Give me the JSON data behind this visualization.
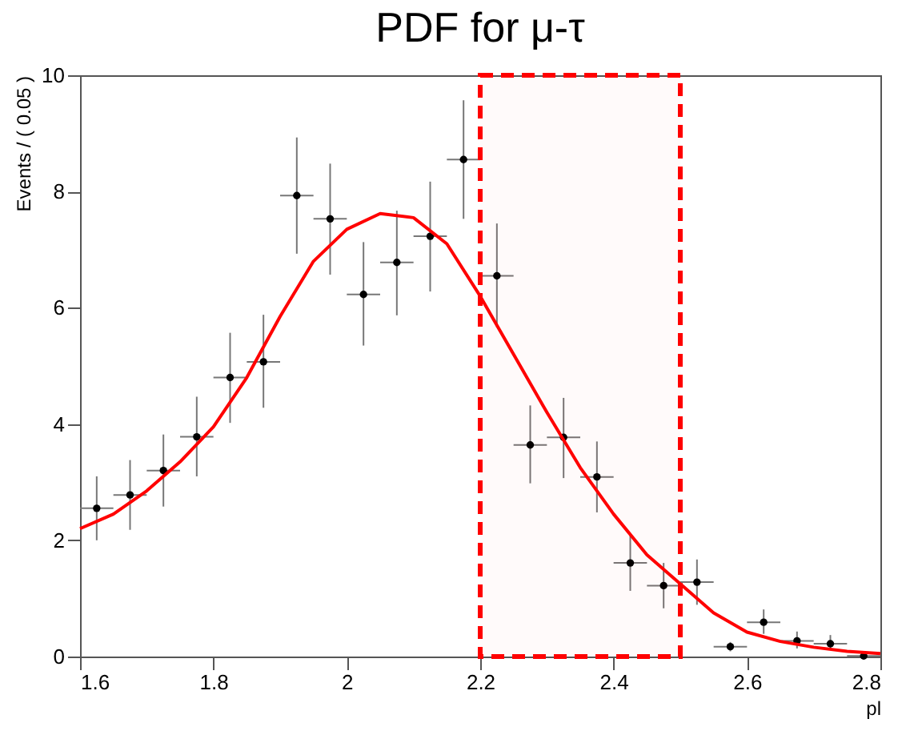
{
  "chart_data": {
    "type": "scatter",
    "title": "PDF for μ-τ",
    "xlabel": "pl",
    "ylabel": "Events / ( 0.05 )",
    "xlim": [
      1.6,
      2.8
    ],
    "xticks": [
      1.6,
      1.8,
      2,
      2.2,
      2.4,
      2.6,
      2.8
    ],
    "ylim": [
      0,
      10
    ],
    "yticks": [
      0,
      2,
      4,
      6,
      8,
      10
    ],
    "grid": false,
    "series": [
      {
        "color": "#000000",
        "marker": "circle",
        "x": [
          1.625,
          1.675,
          1.725,
          1.775,
          1.825,
          1.875,
          1.925,
          1.975,
          2.025,
          2.075,
          2.125,
          2.175,
          2.225,
          2.275,
          2.325,
          2.375,
          2.425,
          2.475,
          2.525,
          2.575,
          2.625,
          2.675,
          2.725,
          2.775
        ],
        "values": [
          2.55,
          2.78,
          3.2,
          3.78,
          4.8,
          5.07,
          7.93,
          7.53,
          6.23,
          6.78,
          7.23,
          8.55,
          6.55,
          3.64,
          3.77,
          3.09,
          1.61,
          1.22,
          1.28,
          0.17,
          0.59,
          0.27,
          0.22,
          0.01
        ],
        "errors": [
          [
            2.0,
            3.1
          ],
          [
            2.18,
            3.38
          ],
          [
            2.58,
            3.82
          ],
          [
            3.1,
            4.47
          ],
          [
            4.02,
            5.57
          ],
          [
            4.28,
            5.88
          ],
          [
            6.93,
            8.93
          ],
          [
            6.57,
            8.48
          ],
          [
            5.35,
            7.13
          ],
          [
            5.87,
            7.67
          ],
          [
            6.28,
            8.17
          ],
          [
            7.53,
            9.57
          ],
          [
            5.66,
            7.45
          ],
          [
            2.98,
            4.32
          ],
          [
            3.07,
            4.45
          ],
          [
            2.48,
            3.7
          ],
          [
            1.13,
            2.08
          ],
          [
            0.83,
            1.61
          ],
          [
            0.89,
            1.67
          ],
          [
            0.09,
            0.25
          ],
          [
            0.39,
            0.81
          ],
          [
            0.14,
            0.43
          ],
          [
            0.12,
            0.37
          ],
          null
        ],
        "xerrors": [
          0.025,
          0.025,
          0.025,
          0.025,
          0.025,
          0.025,
          0.025,
          0.025,
          0.025,
          0.025,
          0.025,
          0.025,
          0.025,
          0.025,
          0.025,
          0.025,
          0.025,
          0.025,
          0.025,
          0.025,
          0.025,
          0.025,
          0.025,
          0.025
        ]
      },
      {
        "type": "line",
        "color": "#ff0000",
        "marker": "none",
        "line_style": "solid",
        "x": [
          1.6,
          1.65,
          1.7,
          1.75,
          1.8,
          1.85,
          1.9,
          1.95,
          2.0,
          2.05,
          2.1,
          2.15,
          2.2,
          2.25,
          2.3,
          2.35,
          2.4,
          2.45,
          2.5,
          2.55,
          2.6,
          2.65,
          2.7,
          2.75,
          2.8
        ],
        "values": [
          2.2,
          2.45,
          2.85,
          3.35,
          3.95,
          4.8,
          5.85,
          6.8,
          7.35,
          7.62,
          7.55,
          7.1,
          6.2,
          5.2,
          4.2,
          3.25,
          2.45,
          1.75,
          1.25,
          0.75,
          0.42,
          0.26,
          0.16,
          0.09,
          0.05
        ]
      }
    ],
    "bands": [
      {
        "axis": "x",
        "from": 2.2,
        "to": 2.5,
        "color": "#ff0000"
      }
    ]
  }
}
